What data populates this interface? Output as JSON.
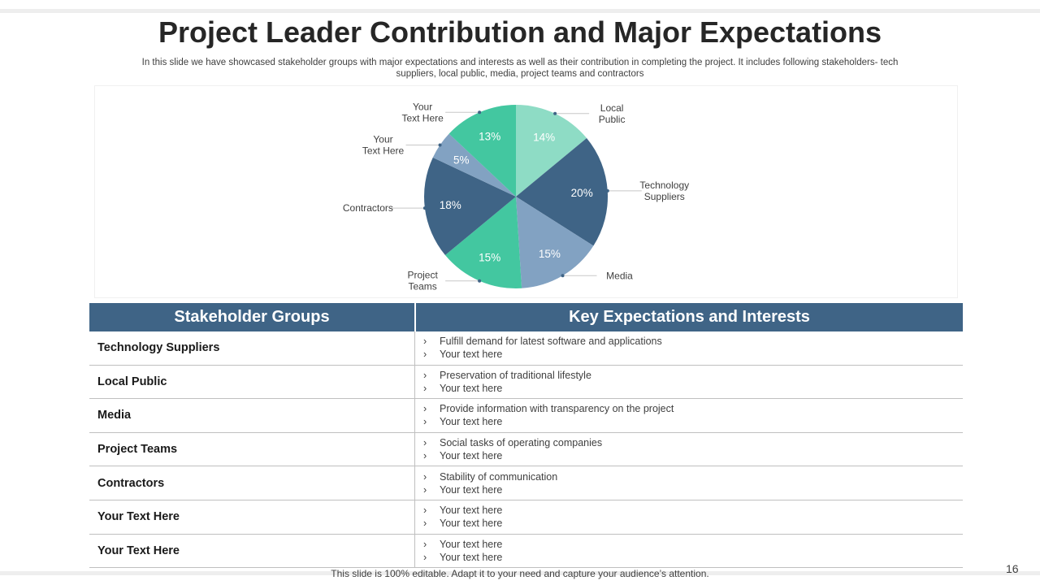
{
  "title": "Project Leader Contribution and Major Expectations",
  "subtitle": "In this slide we have showcased stakeholder groups with major expectations and interests as well as their contribution in completing the project. It includes following stakeholders- tech suppliers, local public, media, project teams and contractors",
  "colors": {
    "header_blue": "#3f6486",
    "mint_light": "#8edcc5",
    "mint": "#43c7a0",
    "slate": "#3f6486",
    "steel_light": "#82a2c2"
  },
  "chart_data": {
    "type": "pie",
    "slices": [
      {
        "label": "Local Public",
        "label_lines": [
          "Local",
          "Public"
        ],
        "value": 14,
        "display": "14%",
        "color": "#8edcc5"
      },
      {
        "label": "Technology Suppliers",
        "label_lines": [
          "Technology",
          "Suppliers"
        ],
        "value": 20,
        "display": "20%",
        "color": "#3f6486"
      },
      {
        "label": "Media",
        "label_lines": [
          "Media"
        ],
        "value": 15,
        "display": "15%",
        "color": "#82a2c2"
      },
      {
        "label": "Project Teams",
        "label_lines": [
          "Project",
          "Teams"
        ],
        "value": 15,
        "display": "15%",
        "color": "#43c7a0"
      },
      {
        "label": "Contractors",
        "label_lines": [
          "Contractors"
        ],
        "value": 18,
        "display": "18%",
        "color": "#3f6486"
      },
      {
        "label": "Your Text Here",
        "label_lines": [
          "Your",
          "Text Here"
        ],
        "value": 5,
        "display": "5%",
        "color": "#82a2c2"
      },
      {
        "label": "Your Text Here",
        "label_lines": [
          "Your",
          "Text Here"
        ],
        "value": 13,
        "display": "13%",
        "color": "#43c7a0"
      }
    ]
  },
  "table": {
    "headers": [
      "Stakeholder Groups",
      "Key Expectations and Interests"
    ],
    "rows": [
      {
        "group": "Technology Suppliers",
        "bullets": [
          "Fulfill demand for latest software and applications",
          "Your text here"
        ]
      },
      {
        "group": "Local Public",
        "bullets": [
          "Preservation  of traditional  lifestyle",
          "Your text here"
        ]
      },
      {
        "group": "Media",
        "bullets": [
          "Provide  information with transparency  on the project",
          "Your text here"
        ]
      },
      {
        "group": "Project Teams",
        "bullets": [
          "Social tasks of operating companies",
          "Your text here"
        ]
      },
      {
        "group": "Contractors",
        "bullets": [
          "Stability of communication",
          "Your text here"
        ]
      },
      {
        "group": "Your Text Here",
        "bullets": [
          "Your text here",
          "Your text here"
        ]
      },
      {
        "group": "Your Text Here",
        "bullets": [
          "Your text here",
          "Your text here"
        ]
      }
    ],
    "bullet_glyph": "›"
  },
  "footer": "This slide is 100% editable. Adapt it to your need and capture your audience’s attention.",
  "page_number": "16"
}
